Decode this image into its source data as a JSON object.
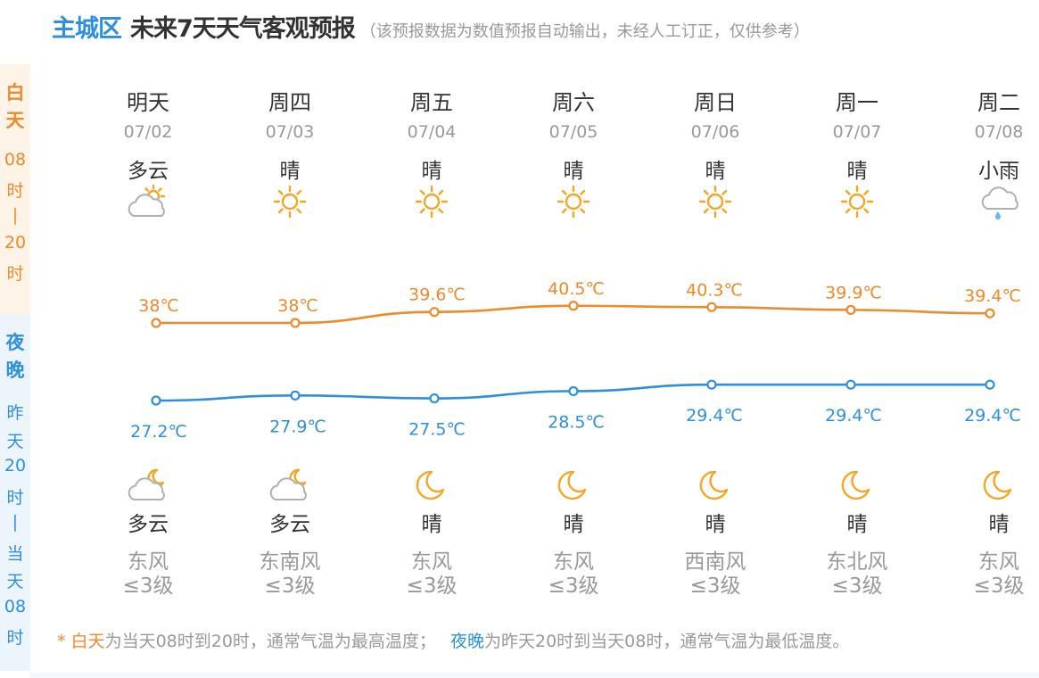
{
  "header": {
    "location": "主城区",
    "title": "未来7天天气客观预报",
    "note": "（该预报数据为数值预报自动输出，未经人工订正，仅供参考）"
  },
  "side": {
    "day_label": [
      "白",
      "天"
    ],
    "day_range": [
      "08",
      "时",
      "|",
      "20",
      "时"
    ],
    "night_label": [
      "夜",
      "晚"
    ],
    "night_range": [
      "昨",
      "天",
      "20",
      "时",
      "|",
      "当",
      "天",
      "08",
      "时"
    ]
  },
  "days": [
    {
      "name": "明天",
      "date": "07/02",
      "day_weather": "多云",
      "day_icon": "partly-cloudy-day-icon",
      "night_weather": "多云",
      "night_icon": "partly-cloudy-night-icon",
      "wind_dir": "东风",
      "wind_level": "≤3级"
    },
    {
      "name": "周四",
      "date": "07/03",
      "day_weather": "晴",
      "day_icon": "sun-icon",
      "night_weather": "多云",
      "night_icon": "partly-cloudy-night-icon",
      "wind_dir": "东南风",
      "wind_level": "≤3级"
    },
    {
      "name": "周五",
      "date": "07/04",
      "day_weather": "晴",
      "day_icon": "sun-icon",
      "night_weather": "晴",
      "night_icon": "moon-icon",
      "wind_dir": "东风",
      "wind_level": "≤3级"
    },
    {
      "name": "周六",
      "date": "07/05",
      "day_weather": "晴",
      "day_icon": "sun-icon",
      "night_weather": "晴",
      "night_icon": "moon-icon",
      "wind_dir": "东风",
      "wind_level": "≤3级"
    },
    {
      "name": "周日",
      "date": "07/06",
      "day_weather": "晴",
      "day_icon": "sun-icon",
      "night_weather": "晴",
      "night_icon": "moon-icon",
      "wind_dir": "西南风",
      "wind_level": "≤3级"
    },
    {
      "name": "周一",
      "date": "07/07",
      "day_weather": "晴",
      "day_icon": "sun-icon",
      "night_weather": "晴",
      "night_icon": "moon-icon",
      "wind_dir": "东北风",
      "wind_level": "≤3级"
    },
    {
      "name": "周二",
      "date": "07/08",
      "day_weather": "小雨",
      "day_icon": "light-rain-icon",
      "night_weather": "晴",
      "night_icon": "moon-icon",
      "wind_dir": "东风",
      "wind_level": "≤3级"
    }
  ],
  "chart_data": {
    "type": "line",
    "categories": [
      "07/02",
      "07/03",
      "07/04",
      "07/05",
      "07/06",
      "07/07",
      "07/08"
    ],
    "unit": "℃",
    "series": [
      {
        "values": [
          38,
          38,
          39.6,
          40.5,
          40.3,
          39.9,
          39.4
        ],
        "labels": [
          "38℃",
          "38℃",
          "39.6℃",
          "40.5℃",
          "40.3℃",
          "39.9℃",
          "39.4℃"
        ],
        "color": "#ee8a2a"
      },
      {
        "values": [
          27.2,
          27.9,
          27.5,
          28.5,
          29.4,
          29.4,
          29.4
        ],
        "labels": [
          "27.2℃",
          "27.9℃",
          "27.5℃",
          "28.5℃",
          "29.4℃",
          "29.4℃",
          "29.4℃"
        ],
        "color": "#2e8fe0"
      }
    ]
  },
  "footer": {
    "star": "* ",
    "day_word": "白天",
    "day_text": "为当天08时到20时，通常气温为最高温度；",
    "night_word": "夜晚",
    "night_text": "为昨天20时到当天08时，通常气温为最低温度。"
  },
  "colors": {
    "accent_blue": "#2e8fe0",
    "accent_orange": "#ee8a2a",
    "sun": "#f5a623",
    "cloud": "#b0b0b0",
    "rain": "#6ab6ee"
  }
}
